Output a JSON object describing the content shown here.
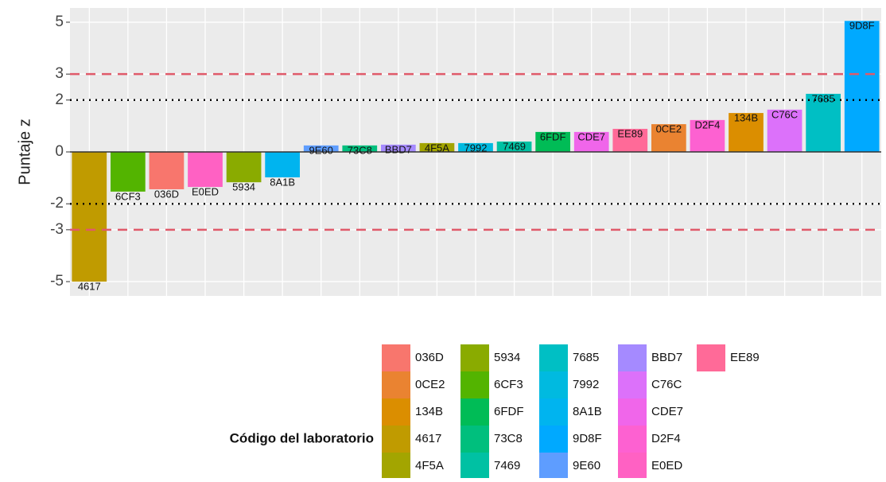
{
  "chart_data": {
    "type": "bar",
    "y_label": "Puntaje z",
    "legend_title": "Código del laboratorio",
    "categories": [
      "4617",
      "6CF3",
      "036D",
      "E0ED",
      "5934",
      "8A1B",
      "9E60",
      "73C8",
      "BBD7",
      "4F5A",
      "7992",
      "7469",
      "6FDF",
      "CDE7",
      "EE89",
      "0CE2",
      "D2F4",
      "134B",
      "C76C",
      "7685",
      "9D8F"
    ],
    "values": [
      -5.0,
      -1.53,
      -1.44,
      -1.35,
      -1.17,
      -0.98,
      0.25,
      0.25,
      0.28,
      0.34,
      0.34,
      0.4,
      0.77,
      0.77,
      0.89,
      1.07,
      1.23,
      1.5,
      1.63,
      2.24,
      5.05
    ],
    "colors": [
      "#C09B00",
      "#53B400",
      "#F8766D",
      "#FF61C3",
      "#8AAB00",
      "#00B4EF",
      "#5E9DFF",
      "#00BF7D",
      "#A58AFF",
      "#A3A500",
      "#00BAE0",
      "#00C1A3",
      "#00BC56",
      "#F066EA",
      "#FF6A98",
      "#EA8331",
      "#FD61D1",
      "#DB8E00",
      "#DC71FA",
      "#00BFC4",
      "#00A9FF"
    ],
    "reference_lines": [
      {
        "value": 0,
        "color": "#333333",
        "dash": "none"
      },
      {
        "value": 2,
        "color": "#000000",
        "dash": "2 6"
      },
      {
        "value": -2,
        "color": "#000000",
        "dash": "2 6"
      },
      {
        "value": 3,
        "color": "#E05A6A",
        "dash": "12 8"
      },
      {
        "value": -3,
        "color": "#E05A6A",
        "dash": "12 8"
      }
    ],
    "ylim": [
      -5.55,
      5.55
    ],
    "yticks": [
      -5,
      -3,
      -2,
      0,
      2,
      3,
      5
    ],
    "grid": true
  }
}
